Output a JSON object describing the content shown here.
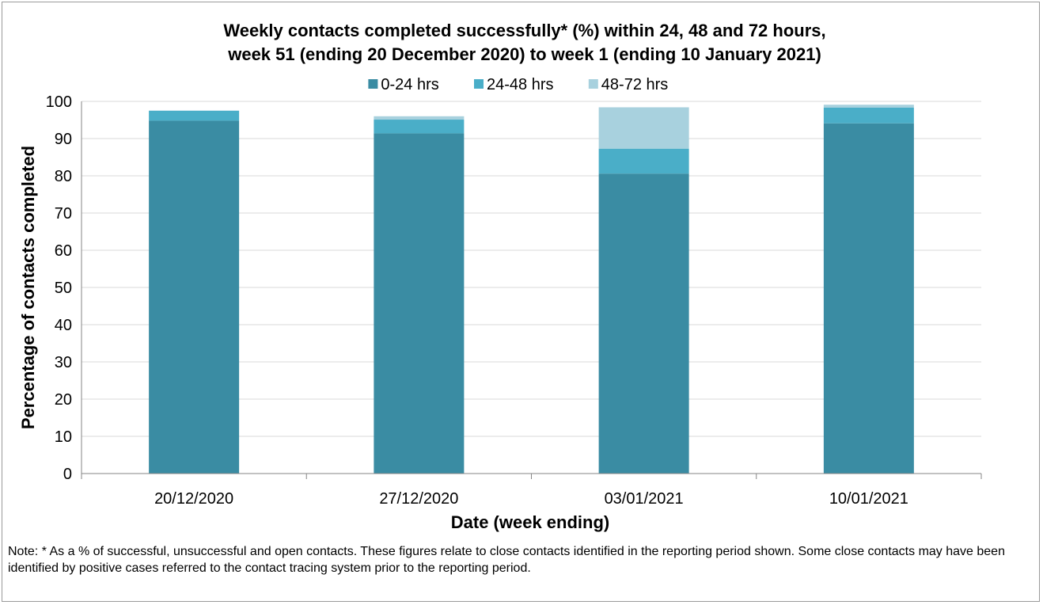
{
  "chart_data": {
    "type": "bar",
    "stacked": true,
    "title_lines": [
      "Weekly contacts completed successfully* (%) within 24, 48 and 72 hours,",
      "week 51 (ending 20 December 2020) to week 1 (ending 10 January 2021)"
    ],
    "xlabel": "Date (week ending)",
    "ylabel": "Percentage of contacts completed",
    "categories": [
      "20/12/2020",
      "27/12/2020",
      "03/01/2021",
      "10/01/2021"
    ],
    "ylim": [
      0,
      100
    ],
    "yticks": [
      0,
      10,
      20,
      30,
      40,
      50,
      60,
      70,
      80,
      90,
      100
    ],
    "grid": true,
    "legend_position": "top",
    "series": [
      {
        "name": "0-24 hrs",
        "color": "#3a8ca3",
        "values": [
          94.8,
          91.4,
          80.6,
          94.1
        ]
      },
      {
        "name": "24-48 hrs",
        "color": "#4aaec8",
        "values": [
          2.7,
          3.7,
          6.7,
          4.2
        ]
      },
      {
        "name": "48-72 hrs",
        "color": "#a8d1de",
        "values": [
          0.0,
          0.9,
          11.1,
          0.8
        ]
      }
    ]
  },
  "note": "Note: * As a % of successful, unsuccessful and open contacts. These figures relate to close contacts identified in the reporting period shown. Some close contacts may have been identified by positive cases referred to the contact tracing system prior to the reporting period."
}
